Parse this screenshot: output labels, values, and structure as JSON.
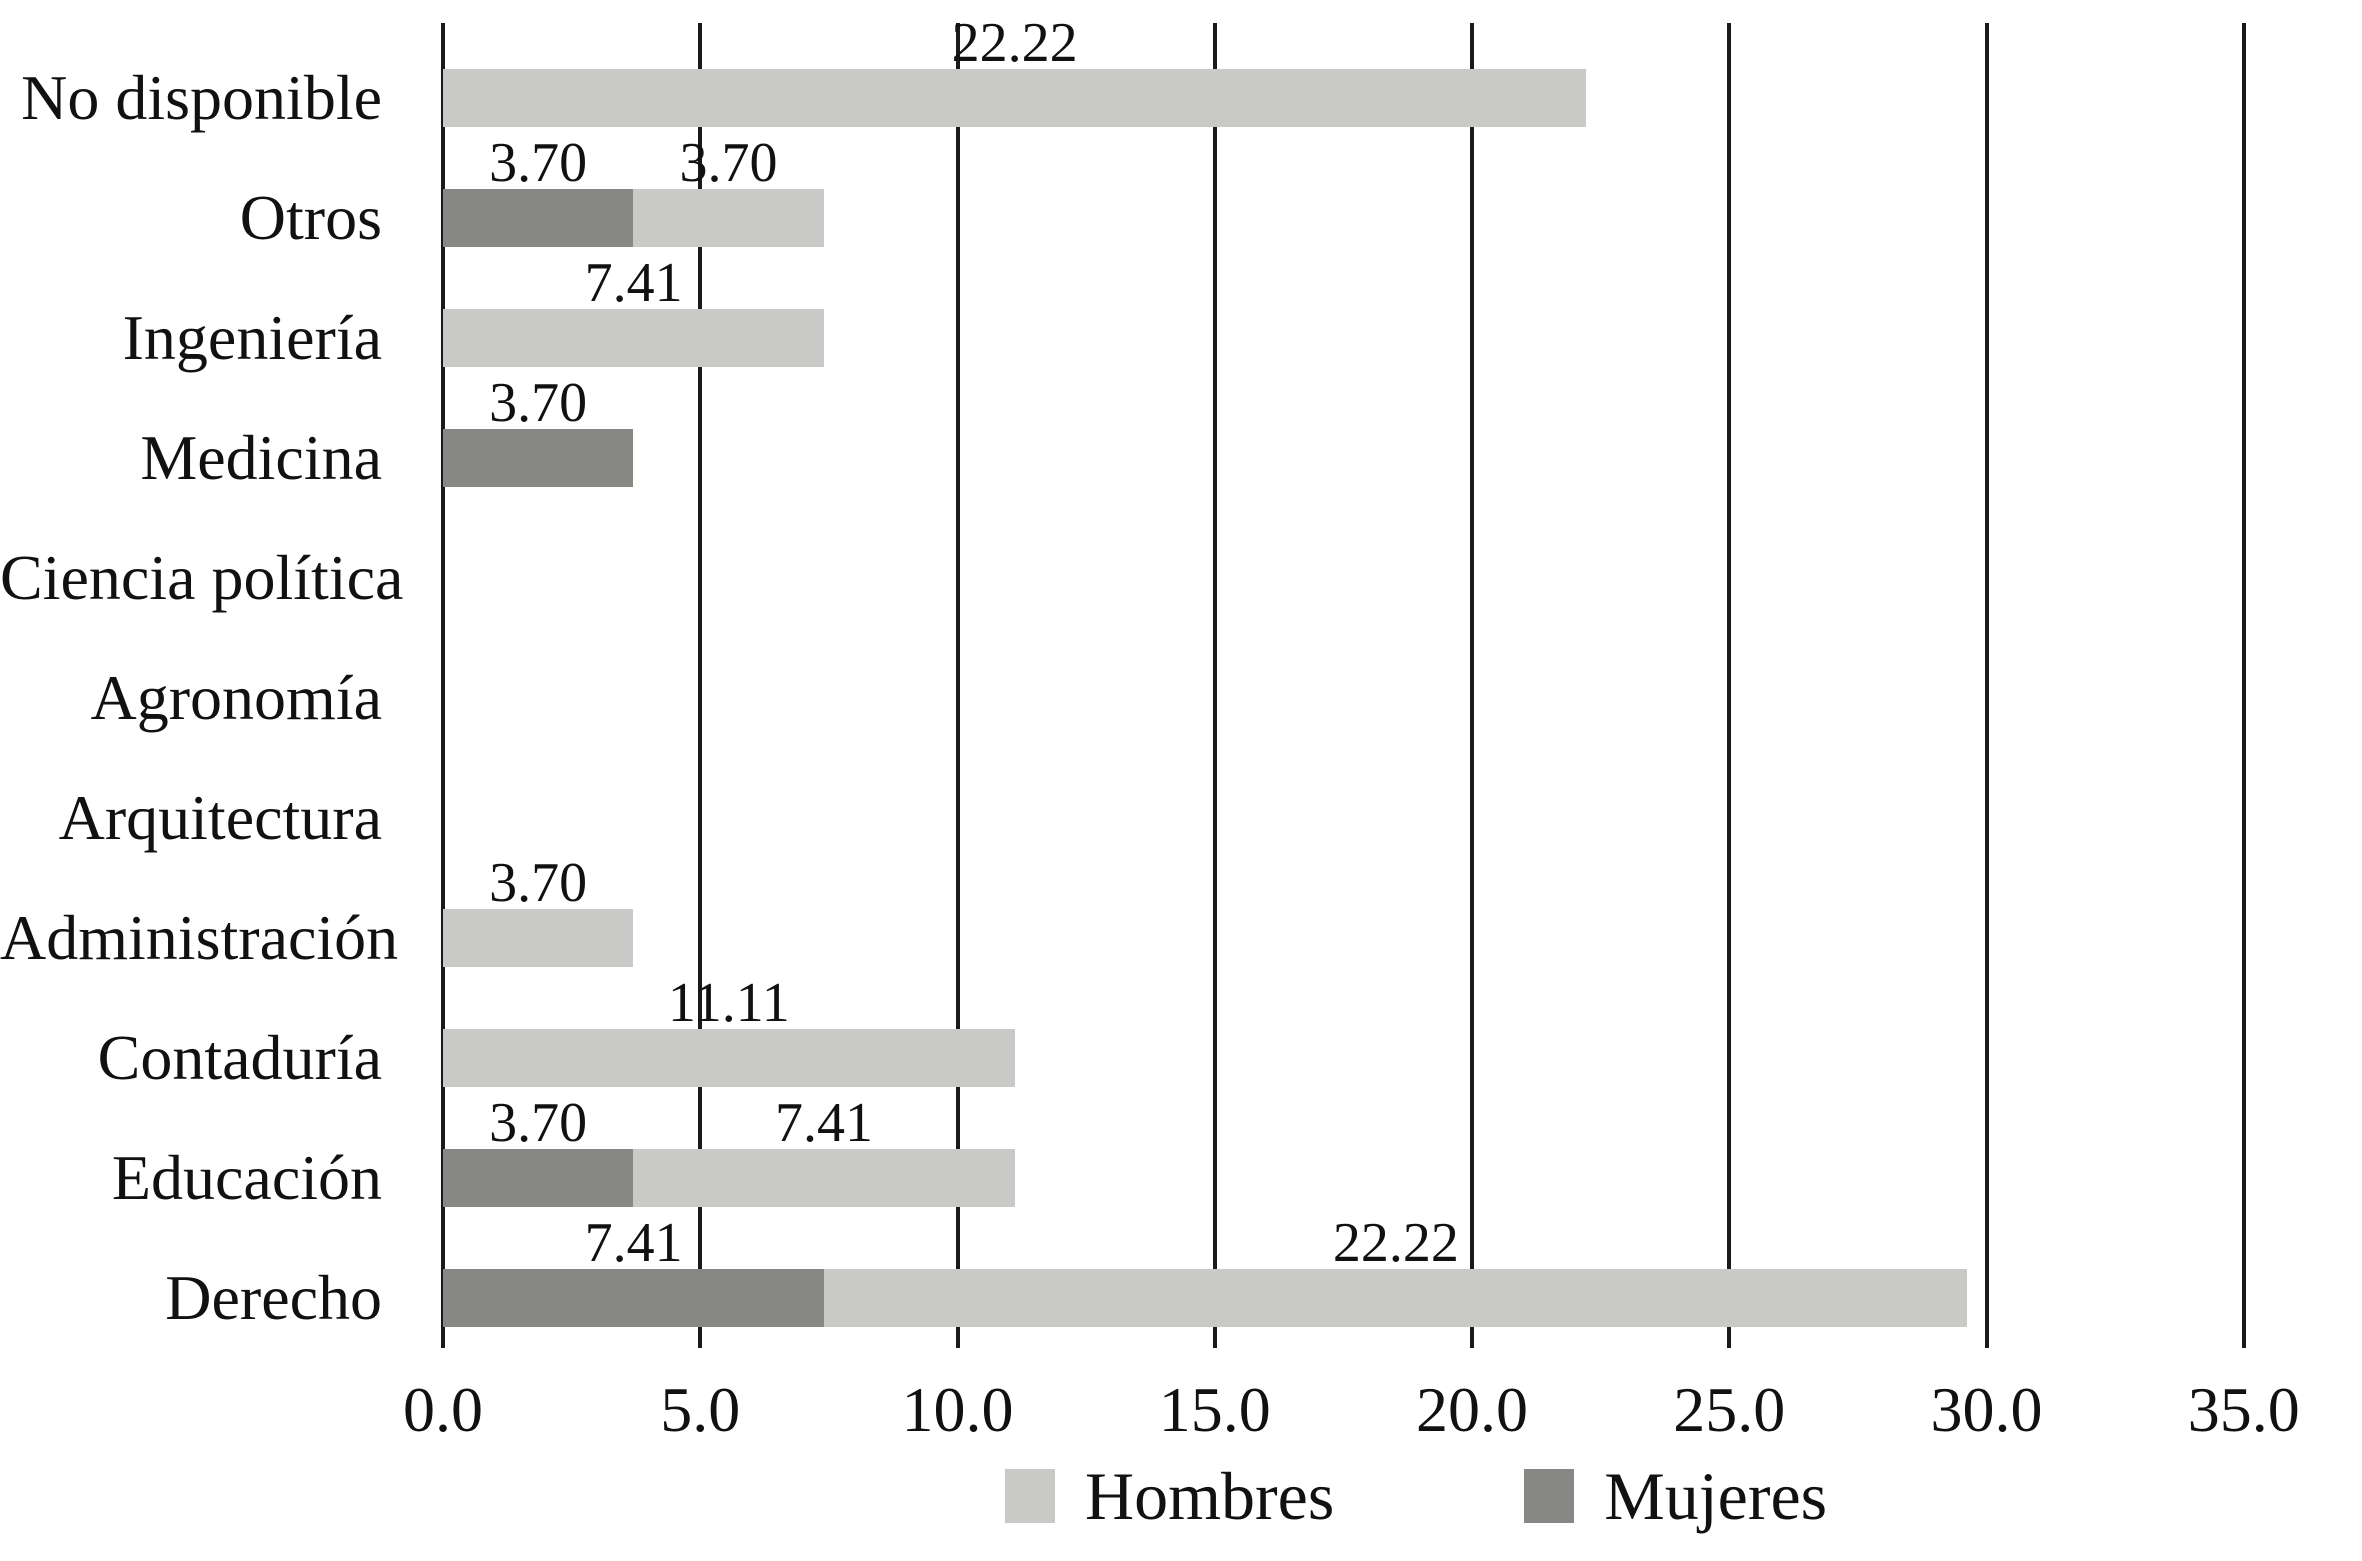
{
  "chart_data": {
    "type": "bar",
    "orientation": "horizontal",
    "title": "",
    "categories": [
      "No disponible",
      "Otros",
      "Ingeniería",
      "Medicina",
      "Ciencia política",
      "Agronomía",
      "Arquitectura",
      "Administración",
      "Contaduría",
      "Educación",
      "Derecho"
    ],
    "series": [
      {
        "name": "Hombres",
        "color": "#c9c9c7",
        "values": [
          22.22,
          3.7,
          7.41,
          0,
          0,
          0,
          0,
          3.7,
          11.11,
          7.41,
          22.22
        ]
      },
      {
        "name": "Mujeres",
        "color": "#878783",
        "values": [
          0,
          3.7,
          0,
          3.7,
          0,
          0,
          0,
          0,
          0,
          3.7,
          7.41
        ]
      }
    ],
    "stack_order": [
      "Mujeres",
      "Hombres"
    ],
    "value_labels_shown": [
      "22.22",
      "3.70",
      "3.70",
      "7.41",
      "3.70",
      "3.70",
      "11.11",
      "3.70",
      "7.41",
      "7.41",
      "22.22"
    ],
    "x_axis": {
      "min": 0,
      "max": 35,
      "tick_interval": 5,
      "tick_labels": [
        "0.0",
        "5.0",
        "10.0",
        "15.0",
        "20.0",
        "25.0",
        "30.0",
        "35.0"
      ]
    },
    "grid": "vertical",
    "legend_position": "bottom",
    "colors": {
      "bar_light": "#c9c9c7",
      "bar_dark": "#878783",
      "gridline": "#1a1a1a",
      "text": "#111111",
      "background": "#ffffff"
    }
  }
}
